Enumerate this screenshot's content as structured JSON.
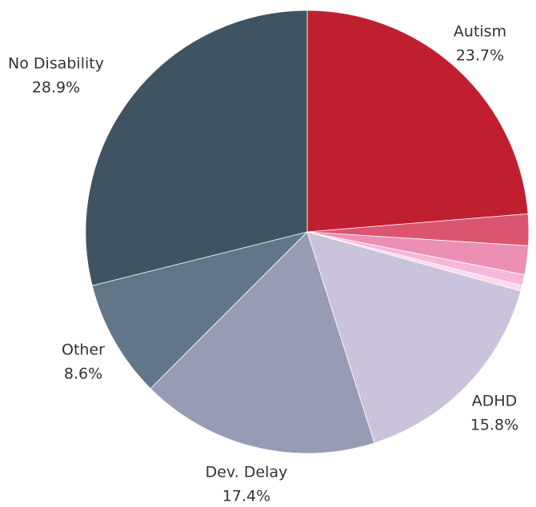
{
  "chart_data": {
    "type": "pie",
    "categories": [
      "Autism",
      null,
      null,
      null,
      null,
      "ADHD",
      "Dev. Delay",
      "Other",
      "No Disability"
    ],
    "values": [
      23.7,
      2.3,
      2.1,
      0.8,
      0.4,
      15.8,
      17.4,
      8.6,
      28.9
    ],
    "value_labels": [
      "23.7%",
      null,
      null,
      null,
      null,
      "15.8%",
      "17.4%",
      "8.6%",
      "28.9%"
    ],
    "colors": [
      "#c01f30",
      "#dc5570",
      "#ec8fb4",
      "#f6b8d8",
      "#fbd9ec",
      "#cbc3dc",
      "#979bb4",
      "#627789",
      "#3e5462"
    ]
  }
}
